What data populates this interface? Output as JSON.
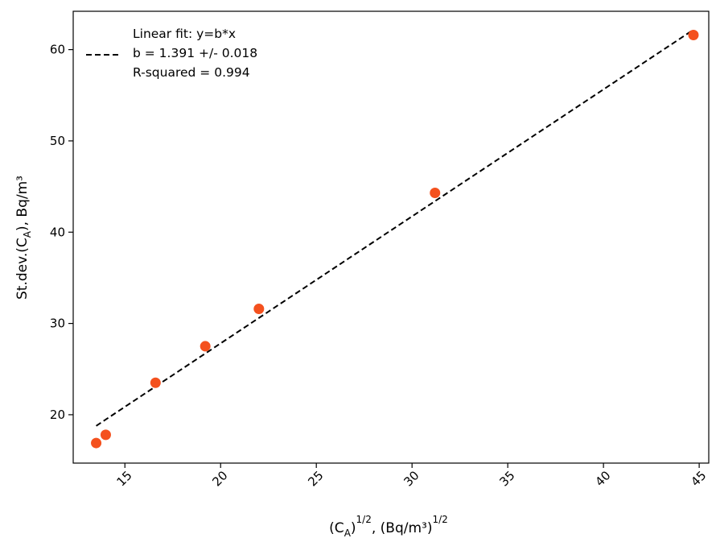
{
  "chart_data": {
    "type": "scatter",
    "xlabel": {
      "base": "(C",
      "sub": "A",
      "close": ")",
      "sup1": "1/2",
      "middle": ", (Bq/m³)",
      "sup2": "1/2"
    },
    "ylabel": {
      "base": "St.dev.(C",
      "sub": "A",
      "close": "),  Bq/m³"
    },
    "xlim": [
      12.3,
      45.5
    ],
    "ylim": [
      14.7,
      64.2
    ],
    "x_ticks": [
      15,
      20,
      25,
      30,
      35,
      40,
      45
    ],
    "y_ticks": [
      20,
      30,
      40,
      50,
      60
    ],
    "grid": false,
    "series": [
      {
        "kind": "points",
        "color": "#f4511e",
        "points": [
          {
            "x": 13.5,
            "y": 16.9
          },
          {
            "x": 14.0,
            "y": 17.8
          },
          {
            "x": 16.6,
            "y": 23.5
          },
          {
            "x": 19.2,
            "y": 27.5
          },
          {
            "x": 22.0,
            "y": 31.6
          },
          {
            "x": 31.2,
            "y": 44.3
          },
          {
            "x": 44.7,
            "y": 61.6
          }
        ]
      },
      {
        "kind": "fit-line",
        "color": "#000000",
        "dash": "dashed",
        "slope": 1.391,
        "x_range": [
          13.5,
          44.7
        ]
      }
    ],
    "legend": {
      "position": "top-left",
      "lines": [
        "Linear fit: y=b*x",
        "b = 1.391 +/- 0.018",
        "R-squared = 0.994"
      ]
    }
  }
}
